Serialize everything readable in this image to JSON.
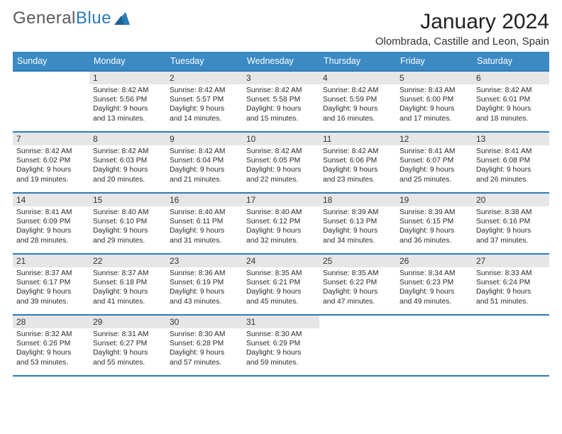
{
  "brand": {
    "part1": "General",
    "part2": "Blue",
    "tri_color": "#2b7ab8"
  },
  "title": "January 2024",
  "location": "Olombrada, Castille and Leon, Spain",
  "colors": {
    "header_bg": "#3b8ac4",
    "header_text": "#ffffff",
    "divider": "#2b7ab8",
    "daynum_bg": "#e6e6e6",
    "page_bg": "#ffffff"
  },
  "days_of_week": [
    "Sunday",
    "Monday",
    "Tuesday",
    "Wednesday",
    "Thursday",
    "Friday",
    "Saturday"
  ],
  "weeks": [
    [
      {
        "blank": true
      },
      {
        "n": "1",
        "sunrise": "8:42 AM",
        "sunset": "5:56 PM",
        "daylight": "9 hours and 13 minutes."
      },
      {
        "n": "2",
        "sunrise": "8:42 AM",
        "sunset": "5:57 PM",
        "daylight": "9 hours and 14 minutes."
      },
      {
        "n": "3",
        "sunrise": "8:42 AM",
        "sunset": "5:58 PM",
        "daylight": "9 hours and 15 minutes."
      },
      {
        "n": "4",
        "sunrise": "8:42 AM",
        "sunset": "5:59 PM",
        "daylight": "9 hours and 16 minutes."
      },
      {
        "n": "5",
        "sunrise": "8:43 AM",
        "sunset": "6:00 PM",
        "daylight": "9 hours and 17 minutes."
      },
      {
        "n": "6",
        "sunrise": "8:42 AM",
        "sunset": "6:01 PM",
        "daylight": "9 hours and 18 minutes."
      }
    ],
    [
      {
        "n": "7",
        "sunrise": "8:42 AM",
        "sunset": "6:02 PM",
        "daylight": "9 hours and 19 minutes."
      },
      {
        "n": "8",
        "sunrise": "8:42 AM",
        "sunset": "6:03 PM",
        "daylight": "9 hours and 20 minutes."
      },
      {
        "n": "9",
        "sunrise": "8:42 AM",
        "sunset": "6:04 PM",
        "daylight": "9 hours and 21 minutes."
      },
      {
        "n": "10",
        "sunrise": "8:42 AM",
        "sunset": "6:05 PM",
        "daylight": "9 hours and 22 minutes."
      },
      {
        "n": "11",
        "sunrise": "8:42 AM",
        "sunset": "6:06 PM",
        "daylight": "9 hours and 23 minutes."
      },
      {
        "n": "12",
        "sunrise": "8:41 AM",
        "sunset": "6:07 PM",
        "daylight": "9 hours and 25 minutes."
      },
      {
        "n": "13",
        "sunrise": "8:41 AM",
        "sunset": "6:08 PM",
        "daylight": "9 hours and 26 minutes."
      }
    ],
    [
      {
        "n": "14",
        "sunrise": "8:41 AM",
        "sunset": "6:09 PM",
        "daylight": "9 hours and 28 minutes."
      },
      {
        "n": "15",
        "sunrise": "8:40 AM",
        "sunset": "6:10 PM",
        "daylight": "9 hours and 29 minutes."
      },
      {
        "n": "16",
        "sunrise": "8:40 AM",
        "sunset": "6:11 PM",
        "daylight": "9 hours and 31 minutes."
      },
      {
        "n": "17",
        "sunrise": "8:40 AM",
        "sunset": "6:12 PM",
        "daylight": "9 hours and 32 minutes."
      },
      {
        "n": "18",
        "sunrise": "8:39 AM",
        "sunset": "6:13 PM",
        "daylight": "9 hours and 34 minutes."
      },
      {
        "n": "19",
        "sunrise": "8:39 AM",
        "sunset": "6:15 PM",
        "daylight": "9 hours and 36 minutes."
      },
      {
        "n": "20",
        "sunrise": "8:38 AM",
        "sunset": "6:16 PM",
        "daylight": "9 hours and 37 minutes."
      }
    ],
    [
      {
        "n": "21",
        "sunrise": "8:37 AM",
        "sunset": "6:17 PM",
        "daylight": "9 hours and 39 minutes."
      },
      {
        "n": "22",
        "sunrise": "8:37 AM",
        "sunset": "6:18 PM",
        "daylight": "9 hours and 41 minutes."
      },
      {
        "n": "23",
        "sunrise": "8:36 AM",
        "sunset": "6:19 PM",
        "daylight": "9 hours and 43 minutes."
      },
      {
        "n": "24",
        "sunrise": "8:35 AM",
        "sunset": "6:21 PM",
        "daylight": "9 hours and 45 minutes."
      },
      {
        "n": "25",
        "sunrise": "8:35 AM",
        "sunset": "6:22 PM",
        "daylight": "9 hours and 47 minutes."
      },
      {
        "n": "26",
        "sunrise": "8:34 AM",
        "sunset": "6:23 PM",
        "daylight": "9 hours and 49 minutes."
      },
      {
        "n": "27",
        "sunrise": "8:33 AM",
        "sunset": "6:24 PM",
        "daylight": "9 hours and 51 minutes."
      }
    ],
    [
      {
        "n": "28",
        "sunrise": "8:32 AM",
        "sunset": "6:26 PM",
        "daylight": "9 hours and 53 minutes."
      },
      {
        "n": "29",
        "sunrise": "8:31 AM",
        "sunset": "6:27 PM",
        "daylight": "9 hours and 55 minutes."
      },
      {
        "n": "30",
        "sunrise": "8:30 AM",
        "sunset": "6:28 PM",
        "daylight": "9 hours and 57 minutes."
      },
      {
        "n": "31",
        "sunrise": "8:30 AM",
        "sunset": "6:29 PM",
        "daylight": "9 hours and 59 minutes."
      },
      {
        "blank": true
      },
      {
        "blank": true
      },
      {
        "blank": true
      }
    ]
  ],
  "labels": {
    "sunrise": "Sunrise:",
    "sunset": "Sunset:",
    "daylight": "Daylight:"
  },
  "typography": {
    "title_pt": 30,
    "subtitle_pt": 15,
    "header_pt": 12.5,
    "body_pt": 10.3
  }
}
